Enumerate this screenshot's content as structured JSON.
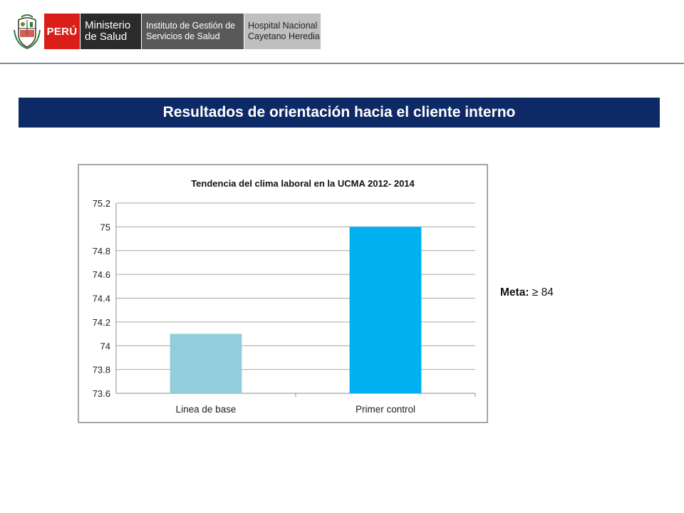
{
  "header": {
    "logo_peru": "PERÚ",
    "logo_minsa_line1": "Ministerio",
    "logo_minsa_line2": "de Salud",
    "logo_igss_line1": "Instituto de Gestión de",
    "logo_igss_line2": "Servicios de Salud",
    "logo_hosp_line1": "Hospital Nacional",
    "logo_hosp_line2": "Cayetano Heredia"
  },
  "banner": {
    "title": "Resultados de orientación hacia el cliente interno"
  },
  "meta": {
    "label": "Meta:",
    "value": "≥ 84"
  },
  "colors": {
    "banner": "#0d2a66",
    "bar1": "#92cddc",
    "bar2": "#00b0f0",
    "peru_red": "#d91e18"
  },
  "chart_data": {
    "type": "bar",
    "title": "Tendencia del clima laboral en la UCMA  2012- 2014",
    "categories": [
      "Linea de base",
      "Primer control"
    ],
    "values": [
      74.1,
      75.0
    ],
    "bar_colors": [
      "#92cddc",
      "#00b0f0"
    ],
    "xlabel": "",
    "ylabel": "",
    "ylim": [
      73.6,
      75.2
    ],
    "yticks": [
      "73.6",
      "73.8",
      "74",
      "74.2",
      "74.4",
      "74.6",
      "74.8",
      "75",
      "75.2"
    ],
    "grid": true,
    "legend": "none"
  }
}
